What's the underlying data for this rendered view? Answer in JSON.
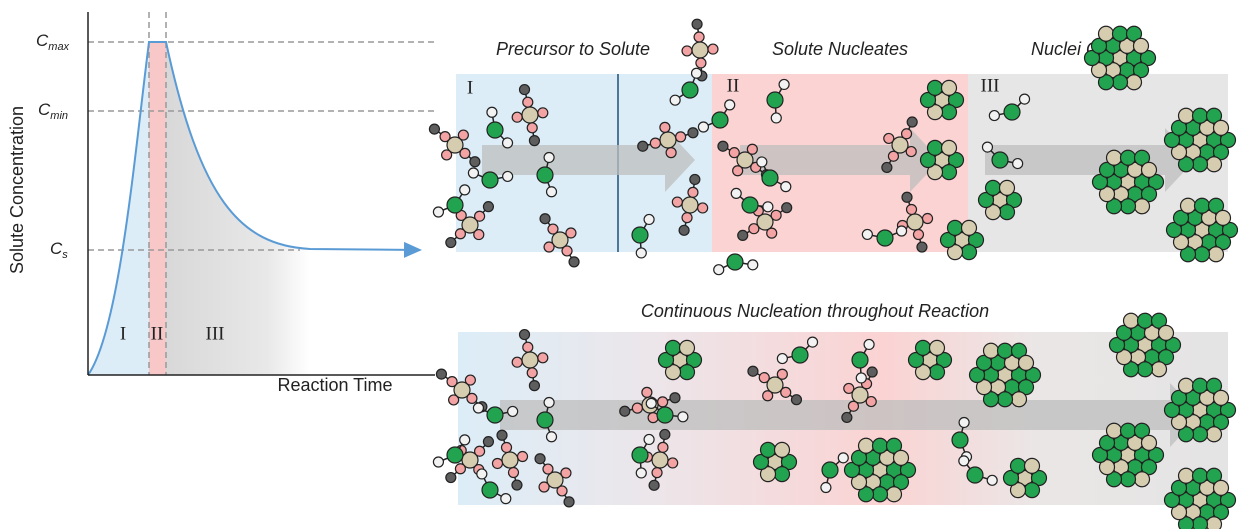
{
  "plot": {
    "y_axis_label": "Solute Concentration",
    "x_axis_label": "Reaction Time",
    "levels": [
      {
        "main": "C",
        "sub": "max"
      },
      {
        "main": "C",
        "sub": "min"
      },
      {
        "main": "C",
        "sub": "s"
      }
    ],
    "stages": [
      "I",
      "II",
      "III"
    ]
  },
  "top_panel": {
    "stages": [
      {
        "numeral": "I",
        "title": "Precursor to Solute"
      },
      {
        "numeral": "II",
        "title": "Solute Nucleates"
      },
      {
        "numeral": "III",
        "title": "Nuclei Grow"
      }
    ]
  },
  "bottom_panel": {
    "title": "Continuous Nucleation  throughout Reaction"
  }
}
